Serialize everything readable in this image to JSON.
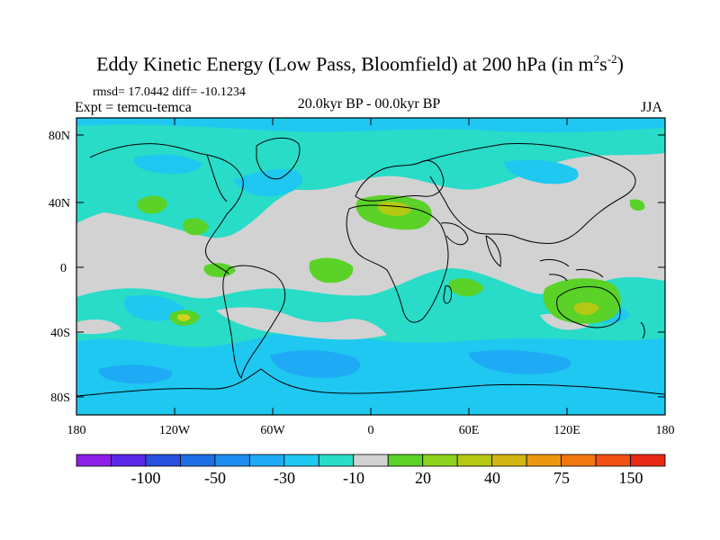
{
  "title": "Eddy Kinetic Energy (Low Pass, Bloomfield) at 200 hPa (in m",
  "title_sup1": "2",
  "title_mid": "s",
  "title_sup2": "-2",
  "title_end": ")",
  "stats": "rmsd= 17.0442 diff= -10.1234",
  "experiment": "Expt = temcu-temca",
  "period": "20.0kyr BP - 00.0kyr BP",
  "season": "JJA",
  "map": {
    "lat_ticks": [
      "80N",
      "40N",
      "0",
      "40S",
      "80S"
    ],
    "lon_ticks": [
      "180",
      "120W",
      "60W",
      "0",
      "60E",
      "120E",
      "180"
    ]
  },
  "colorbar": {
    "colors": [
      "#8c1ee8",
      "#5a28e6",
      "#2850dc",
      "#1e6ee6",
      "#1e8cf0",
      "#1eaaf5",
      "#1ec8f0",
      "#28dcc8",
      "#d2d2d2",
      "#5ad228",
      "#8cd21e",
      "#b4c814",
      "#d2b414",
      "#eb960f",
      "#f0780f",
      "#f05014",
      "#e62814"
    ],
    "labels": [
      "-100",
      "-50",
      "-30",
      "-10",
      "20",
      "40",
      "75",
      "150"
    ]
  },
  "legend_colors": {
    "gray": "#d2d2d2",
    "teal": "#28dcc8",
    "cyan": "#1ec8f0",
    "blue": "#1eaaf5",
    "green": "#5ad228",
    "yellow": "#d2d21e",
    "coast": "#000000"
  }
}
